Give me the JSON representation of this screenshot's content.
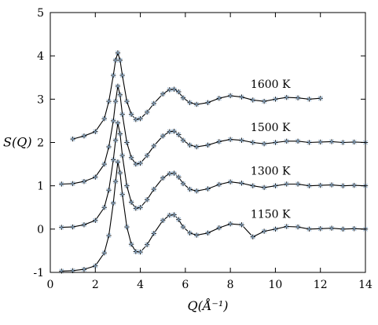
{
  "chart_data": {
    "type": "line",
    "title": "",
    "xlabel": "Q(Å⁻¹)",
    "ylabel": "S(Q)",
    "xlim": [
      0,
      14
    ],
    "ylim": [
      -1,
      5
    ],
    "x_ticks": [
      0,
      2,
      4,
      6,
      8,
      10,
      12,
      14
    ],
    "y_ticks": [
      -1,
      0,
      1,
      2,
      3,
      4,
      5
    ],
    "grid": false,
    "legend": "none",
    "colors": {
      "line": "#000000",
      "plus_marker": "#000000",
      "cross_marker": "#87a9c9"
    },
    "series": [
      {
        "name": "1600 K",
        "offset": 3,
        "label_at": [
          12.0,
          0.35
        ],
        "x": [
          1.0,
          1.5,
          2.0,
          2.4,
          2.6,
          2.8,
          2.9,
          3.0,
          3.1,
          3.2,
          3.4,
          3.6,
          3.8,
          4.0,
          4.3,
          4.6,
          5.0,
          5.3,
          5.5,
          5.7,
          5.9,
          6.2,
          6.5,
          7.0,
          7.5,
          8.0,
          8.5,
          9.0,
          9.5,
          10.0,
          10.5,
          11.0,
          11.5,
          12.0
        ],
        "y": [
          -0.92,
          -0.85,
          -0.75,
          -0.45,
          -0.05,
          0.55,
          0.9,
          1.07,
          0.9,
          0.55,
          -0.05,
          -0.35,
          -0.47,
          -0.45,
          -0.3,
          -0.1,
          0.12,
          0.22,
          0.23,
          0.17,
          0.03,
          -0.08,
          -0.12,
          -0.08,
          0.02,
          0.08,
          0.05,
          -0.02,
          -0.05,
          0.0,
          0.04,
          0.03,
          0.0,
          0.02
        ]
      },
      {
        "name": "1500 K",
        "offset": 2,
        "label_at": [
          11.9,
          0.35
        ],
        "x": [
          0.5,
          1.0,
          1.5,
          2.0,
          2.4,
          2.6,
          2.8,
          2.9,
          3.0,
          3.1,
          3.2,
          3.4,
          3.6,
          3.8,
          4.0,
          4.3,
          4.6,
          5.0,
          5.3,
          5.5,
          5.7,
          5.9,
          6.2,
          6.5,
          7.0,
          7.5,
          8.0,
          8.5,
          9.0,
          9.5,
          10.0,
          10.5,
          11.0,
          11.5,
          12.0,
          12.5,
          13.0,
          13.5,
          14.0
        ],
        "y": [
          -0.96,
          -0.95,
          -0.9,
          -0.8,
          -0.5,
          -0.1,
          0.5,
          0.95,
          1.3,
          1.1,
          0.65,
          0.0,
          -0.35,
          -0.5,
          -0.48,
          -0.3,
          -0.08,
          0.15,
          0.25,
          0.26,
          0.18,
          0.05,
          -0.06,
          -0.1,
          -0.06,
          0.02,
          0.07,
          0.05,
          0.0,
          -0.03,
          0.0,
          0.03,
          0.03,
          0.0,
          0.01,
          0.02,
          0.0,
          0.01,
          0.0
        ]
      },
      {
        "name": "1300 K",
        "offset": 1,
        "label_at": [
          11.9,
          0.35
        ],
        "x": [
          0.5,
          1.0,
          1.5,
          2.0,
          2.4,
          2.6,
          2.8,
          2.9,
          3.0,
          3.1,
          3.2,
          3.4,
          3.6,
          3.8,
          4.0,
          4.3,
          4.6,
          5.0,
          5.3,
          5.5,
          5.7,
          5.9,
          6.2,
          6.5,
          7.0,
          7.5,
          8.0,
          8.5,
          9.0,
          9.5,
          10.0,
          10.5,
          11.0,
          11.5,
          12.0,
          12.5,
          13.0,
          13.5,
          14.0
        ],
        "y": [
          -0.96,
          -0.95,
          -0.9,
          -0.8,
          -0.5,
          -0.1,
          0.6,
          1.05,
          1.45,
          1.2,
          0.7,
          0.0,
          -0.38,
          -0.52,
          -0.5,
          -0.32,
          -0.08,
          0.18,
          0.28,
          0.29,
          0.2,
          0.05,
          -0.08,
          -0.12,
          -0.07,
          0.03,
          0.09,
          0.06,
          0.0,
          -0.04,
          0.0,
          0.04,
          0.04,
          0.0,
          0.01,
          0.02,
          0.0,
          0.01,
          0.0
        ]
      },
      {
        "name": "1150 K",
        "offset": 0,
        "label_at": [
          11.9,
          0.35
        ],
        "x": [
          0.5,
          1.0,
          1.5,
          2.0,
          2.4,
          2.6,
          2.8,
          2.9,
          3.0,
          3.1,
          3.2,
          3.4,
          3.6,
          3.8,
          4.0,
          4.3,
          4.6,
          5.0,
          5.3,
          5.5,
          5.7,
          5.9,
          6.2,
          6.5,
          7.0,
          7.5,
          8.0,
          8.5,
          9.0,
          9.5,
          10.0,
          10.5,
          11.0,
          11.5,
          12.0,
          12.5,
          13.0,
          13.5,
          14.0
        ],
        "y": [
          -0.97,
          -0.96,
          -0.93,
          -0.85,
          -0.55,
          -0.15,
          0.6,
          1.1,
          1.55,
          1.3,
          0.8,
          0.05,
          -0.35,
          -0.52,
          -0.53,
          -0.36,
          -0.1,
          0.2,
          0.32,
          0.33,
          0.22,
          0.05,
          -0.09,
          -0.14,
          -0.09,
          0.03,
          0.12,
          0.1,
          -0.18,
          -0.05,
          0.0,
          0.06,
          0.05,
          0.0,
          0.01,
          0.02,
          0.0,
          0.01,
          0.0
        ]
      }
    ]
  }
}
